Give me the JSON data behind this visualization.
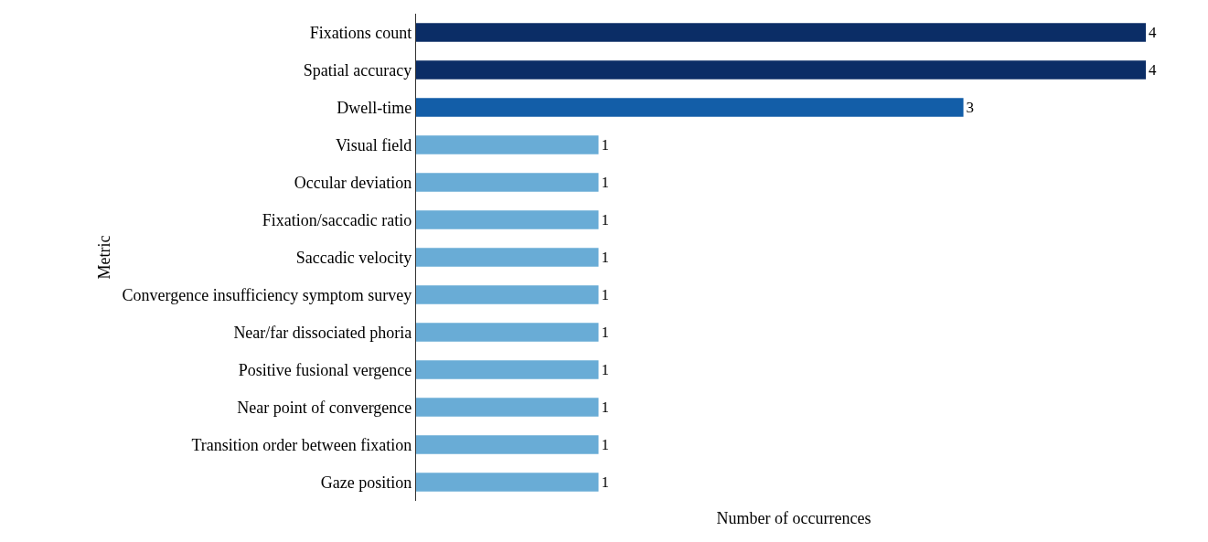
{
  "chart_data": {
    "type": "bar",
    "orientation": "horizontal",
    "xlabel": "Number of occurrences",
    "ylabel": "Metric",
    "categories": [
      "Fixations count",
      "Spatial accuracy",
      "Dwell-time",
      "Visual field",
      "Occular deviation",
      "Fixation/saccadic ratio",
      "Saccadic velocity",
      "Convergence insufficiency symptom survey",
      "Near/far dissociated phoria",
      "Positive fusional vergence",
      "Near point of convergence",
      "Transition order between fixation",
      "Gaze position"
    ],
    "values": [
      4,
      4,
      3,
      1,
      1,
      1,
      1,
      1,
      1,
      1,
      1,
      1,
      1
    ],
    "colors": [
      "#0b2d66",
      "#0b2d66",
      "#135ea8",
      "#69acd6",
      "#69acd6",
      "#69acd6",
      "#69acd6",
      "#69acd6",
      "#69acd6",
      "#69acd6",
      "#69acd6",
      "#69acd6",
      "#69acd6"
    ],
    "data_labels": true
  }
}
